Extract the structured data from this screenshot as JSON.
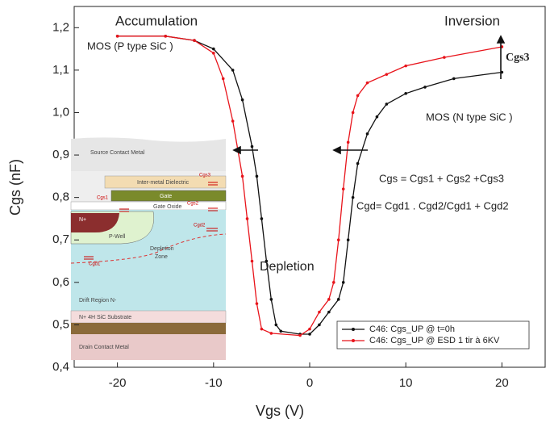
{
  "chart_data": {
    "type": "line",
    "x_label": "Vgs (V)",
    "y_label": "Cgs (nF)",
    "xlim": [
      -24.5,
      24.5
    ],
    "xticks": [
      -20,
      -10,
      0,
      10,
      20
    ],
    "ylim": [
      0.4,
      1.25
    ],
    "yticks": [
      {
        "value": 0.4,
        "label": "0,4"
      },
      {
        "value": 0.5,
        "label": "0,5"
      },
      {
        "value": 0.6,
        "label": "0,6"
      },
      {
        "value": 0.7,
        "label": "0,7"
      },
      {
        "value": 0.8,
        "label": "0,8"
      },
      {
        "value": 0.9,
        "label": "0,9"
      },
      {
        "value": 1.0,
        "label": "1,0"
      },
      {
        "value": 1.1,
        "label": "1,1"
      },
      {
        "value": 1.2,
        "label": "1,2"
      }
    ],
    "grid": false,
    "legend": "lower right",
    "series": [
      {
        "name": "C46: Cgs_UP @ t=0h",
        "color": "#111111",
        "x": [
          -20,
          -15,
          -12,
          -10,
          -8,
          -7,
          -6,
          -5.5,
          -5,
          -4.5,
          -4,
          -3.5,
          -3,
          -1,
          0,
          1,
          2,
          3,
          3.5,
          4,
          4.5,
          5,
          6,
          7,
          8,
          10,
          12,
          15,
          20
        ],
        "values": [
          1.18,
          1.18,
          1.17,
          1.15,
          1.1,
          1.03,
          0.92,
          0.85,
          0.75,
          0.65,
          0.56,
          0.5,
          0.485,
          0.478,
          0.478,
          0.5,
          0.53,
          0.56,
          0.6,
          0.7,
          0.8,
          0.88,
          0.95,
          0.99,
          1.02,
          1.045,
          1.06,
          1.08,
          1.095
        ]
      },
      {
        "name": "C46: Cgs_UP @ ESD 1 tir à 6KV",
        "color": "#e8141b",
        "x": [
          -20,
          -15,
          -12,
          -10,
          -9,
          -8,
          -7,
          -6.5,
          -6,
          -5.5,
          -5,
          -4,
          -1,
          0,
          1,
          2,
          2.5,
          3,
          3.5,
          4,
          4.5,
          5,
          6,
          8,
          10,
          14,
          20
        ],
        "values": [
          1.18,
          1.18,
          1.17,
          1.14,
          1.08,
          0.98,
          0.85,
          0.75,
          0.65,
          0.55,
          0.49,
          0.48,
          0.475,
          0.49,
          0.53,
          0.56,
          0.6,
          0.7,
          0.82,
          0.93,
          1.0,
          1.04,
          1.07,
          1.09,
          1.11,
          1.13,
          1.155
        ]
      }
    ],
    "annotations": [
      "Accumulation",
      "Inversion",
      "MOS (P type SiC )",
      "MOS (N type SiC )",
      "Cgs3",
      "Depletion",
      "Cgs = Cgs1 + Cgs2 +Cgs3",
      "Cgd= Cgd1 . Cgd2/Cgd1 + Cgd2"
    ]
  },
  "inset": {
    "labels": [
      "Source Contact Metal",
      "Inter-metal Dielectric",
      "Gate",
      "Gate Oxide",
      "N+",
      "P-Well",
      "Depletion",
      "Zone",
      "Drift Region N-",
      "N+ 4H SiC Substrate",
      "Drain Contact Metal"
    ],
    "capacitors": [
      "Cgs3",
      "Cgs1",
      "Cgs2",
      "Cgd2",
      "Cgd1"
    ]
  }
}
